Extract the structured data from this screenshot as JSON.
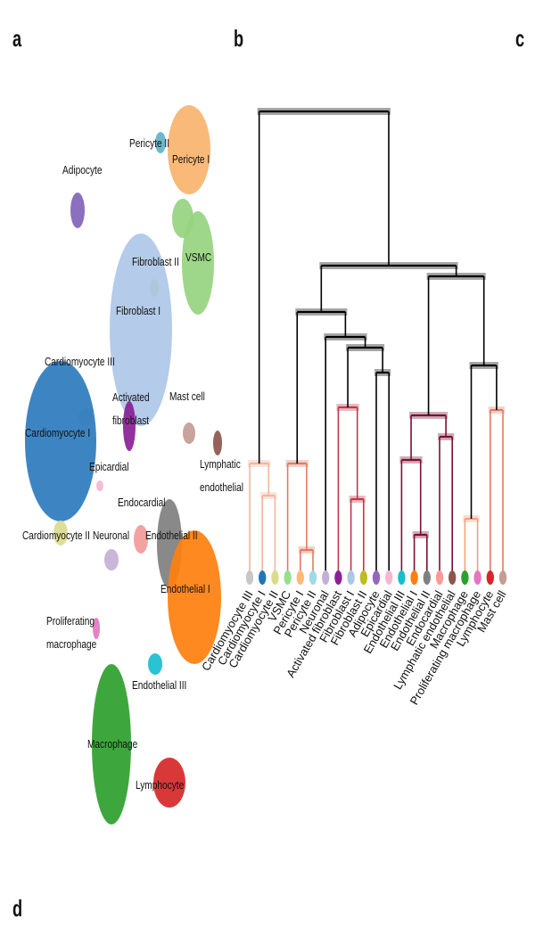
{
  "panel_letters": [
    "a",
    "b",
    "c",
    "d"
  ],
  "umap": {
    "clusters": [
      {
        "label": "Pericyte II",
        "color": "#5fb3c9"
      },
      {
        "label": "Pericyte I",
        "color": "#f8b36e"
      },
      {
        "label": "Adipocyte",
        "color": "#8064b8"
      },
      {
        "label": "Fibroblast II",
        "color": "#c2c03a"
      },
      {
        "label": "VSMC",
        "color": "#96d47f"
      },
      {
        "label": "Fibroblast I",
        "color": "#aec7e8"
      },
      {
        "label": "Cardiomyocyte III",
        "color": "#d0d0d0"
      },
      {
        "label": "Activated fibroblast",
        "color": "#8a1f96"
      },
      {
        "label": "Mast cell",
        "color": "#c49c94"
      },
      {
        "label": "Cardiomyocyte I",
        "color": "#2d7bbd"
      },
      {
        "label": "Lymphatic endothelial",
        "color": "#8c564b"
      },
      {
        "label": "Epicardial",
        "color": "#f7b6d2"
      },
      {
        "label": "Endocardial",
        "color": "#f29a9a"
      },
      {
        "label": "Cardiomyocyte II",
        "color": "#dbdb8d"
      },
      {
        "label": "Neuronal",
        "color": "#c5b0d5"
      },
      {
        "label": "Endothelial II",
        "color": "#7f7f7f"
      },
      {
        "label": "Endothelial I",
        "color": "#ff7f0e"
      },
      {
        "label": "Proliferating macrophage",
        "color": "#e377c2"
      },
      {
        "label": "Endothelial III",
        "color": "#17becf"
      },
      {
        "label": "Macrophage",
        "color": "#2ca02c"
      },
      {
        "label": "Lymphocyte",
        "color": "#d62728"
      }
    ]
  },
  "dendrogram": {
    "leaves": [
      {
        "label": "Cardiomyocyte III",
        "color": "#c7c7c7"
      },
      {
        "label": "Cardiomyocyte I",
        "color": "#1f77b4"
      },
      {
        "label": "Cardiomyocyte II",
        "color": "#dbdb8d"
      },
      {
        "label": "VSMC",
        "color": "#98df8a"
      },
      {
        "label": "Pericyte I",
        "color": "#ffbb78"
      },
      {
        "label": "Pericyte II",
        "color": "#9edae5"
      },
      {
        "label": "Neuronal",
        "color": "#c5b0d5"
      },
      {
        "label": "Activated fibroblast",
        "color": "#8a1f96"
      },
      {
        "label": "Fibroblast I",
        "color": "#aec7e8"
      },
      {
        "label": "Fibroblast II",
        "color": "#bcbd22"
      },
      {
        "label": "Adipocyte",
        "color": "#9467bd"
      },
      {
        "label": "Epicardial",
        "color": "#f7b6d2"
      },
      {
        "label": "Endothelial III",
        "color": "#17becf"
      },
      {
        "label": "Endothelial I",
        "color": "#ff7f0e"
      },
      {
        "label": "Endothelial II",
        "color": "#7f7f7f"
      },
      {
        "label": "Endocardial",
        "color": "#ff9896"
      },
      {
        "label": "Lymphatic endothelial",
        "color": "#8c564b"
      },
      {
        "label": "Macrophage",
        "color": "#2ca02c"
      },
      {
        "label": "Proliferating macrophage",
        "color": "#e377c2"
      },
      {
        "label": "Lymphocyte",
        "color": "#d62728"
      },
      {
        "label": "Mast cell",
        "color": "#c49c94"
      }
    ]
  }
}
